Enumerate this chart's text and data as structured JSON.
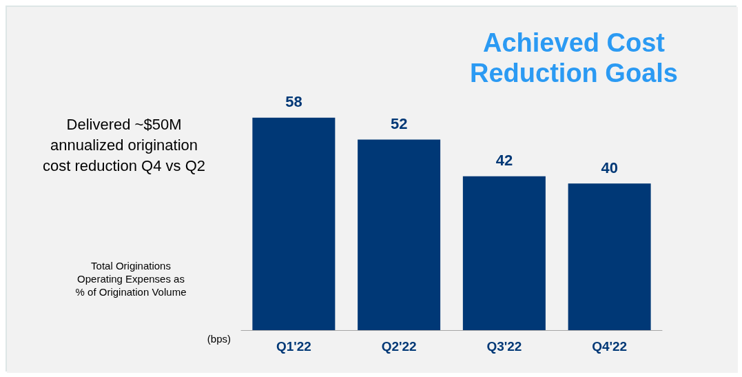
{
  "chart_data": {
    "type": "bar",
    "title": "Achieved Cost\nReduction Goals",
    "annotations": [
      "Delivered ~$50M\nannualized origination\ncost reduction Q4 vs Q2",
      "Total Originations\nOperating Expenses as\n% of Origination Volume",
      "(bps)"
    ],
    "categories": [
      "Q1'22",
      "Q2'22",
      "Q3'22",
      "Q4'22"
    ],
    "values": [
      58,
      52,
      42,
      40
    ],
    "color": "#003876",
    "data_labels": true
  }
}
